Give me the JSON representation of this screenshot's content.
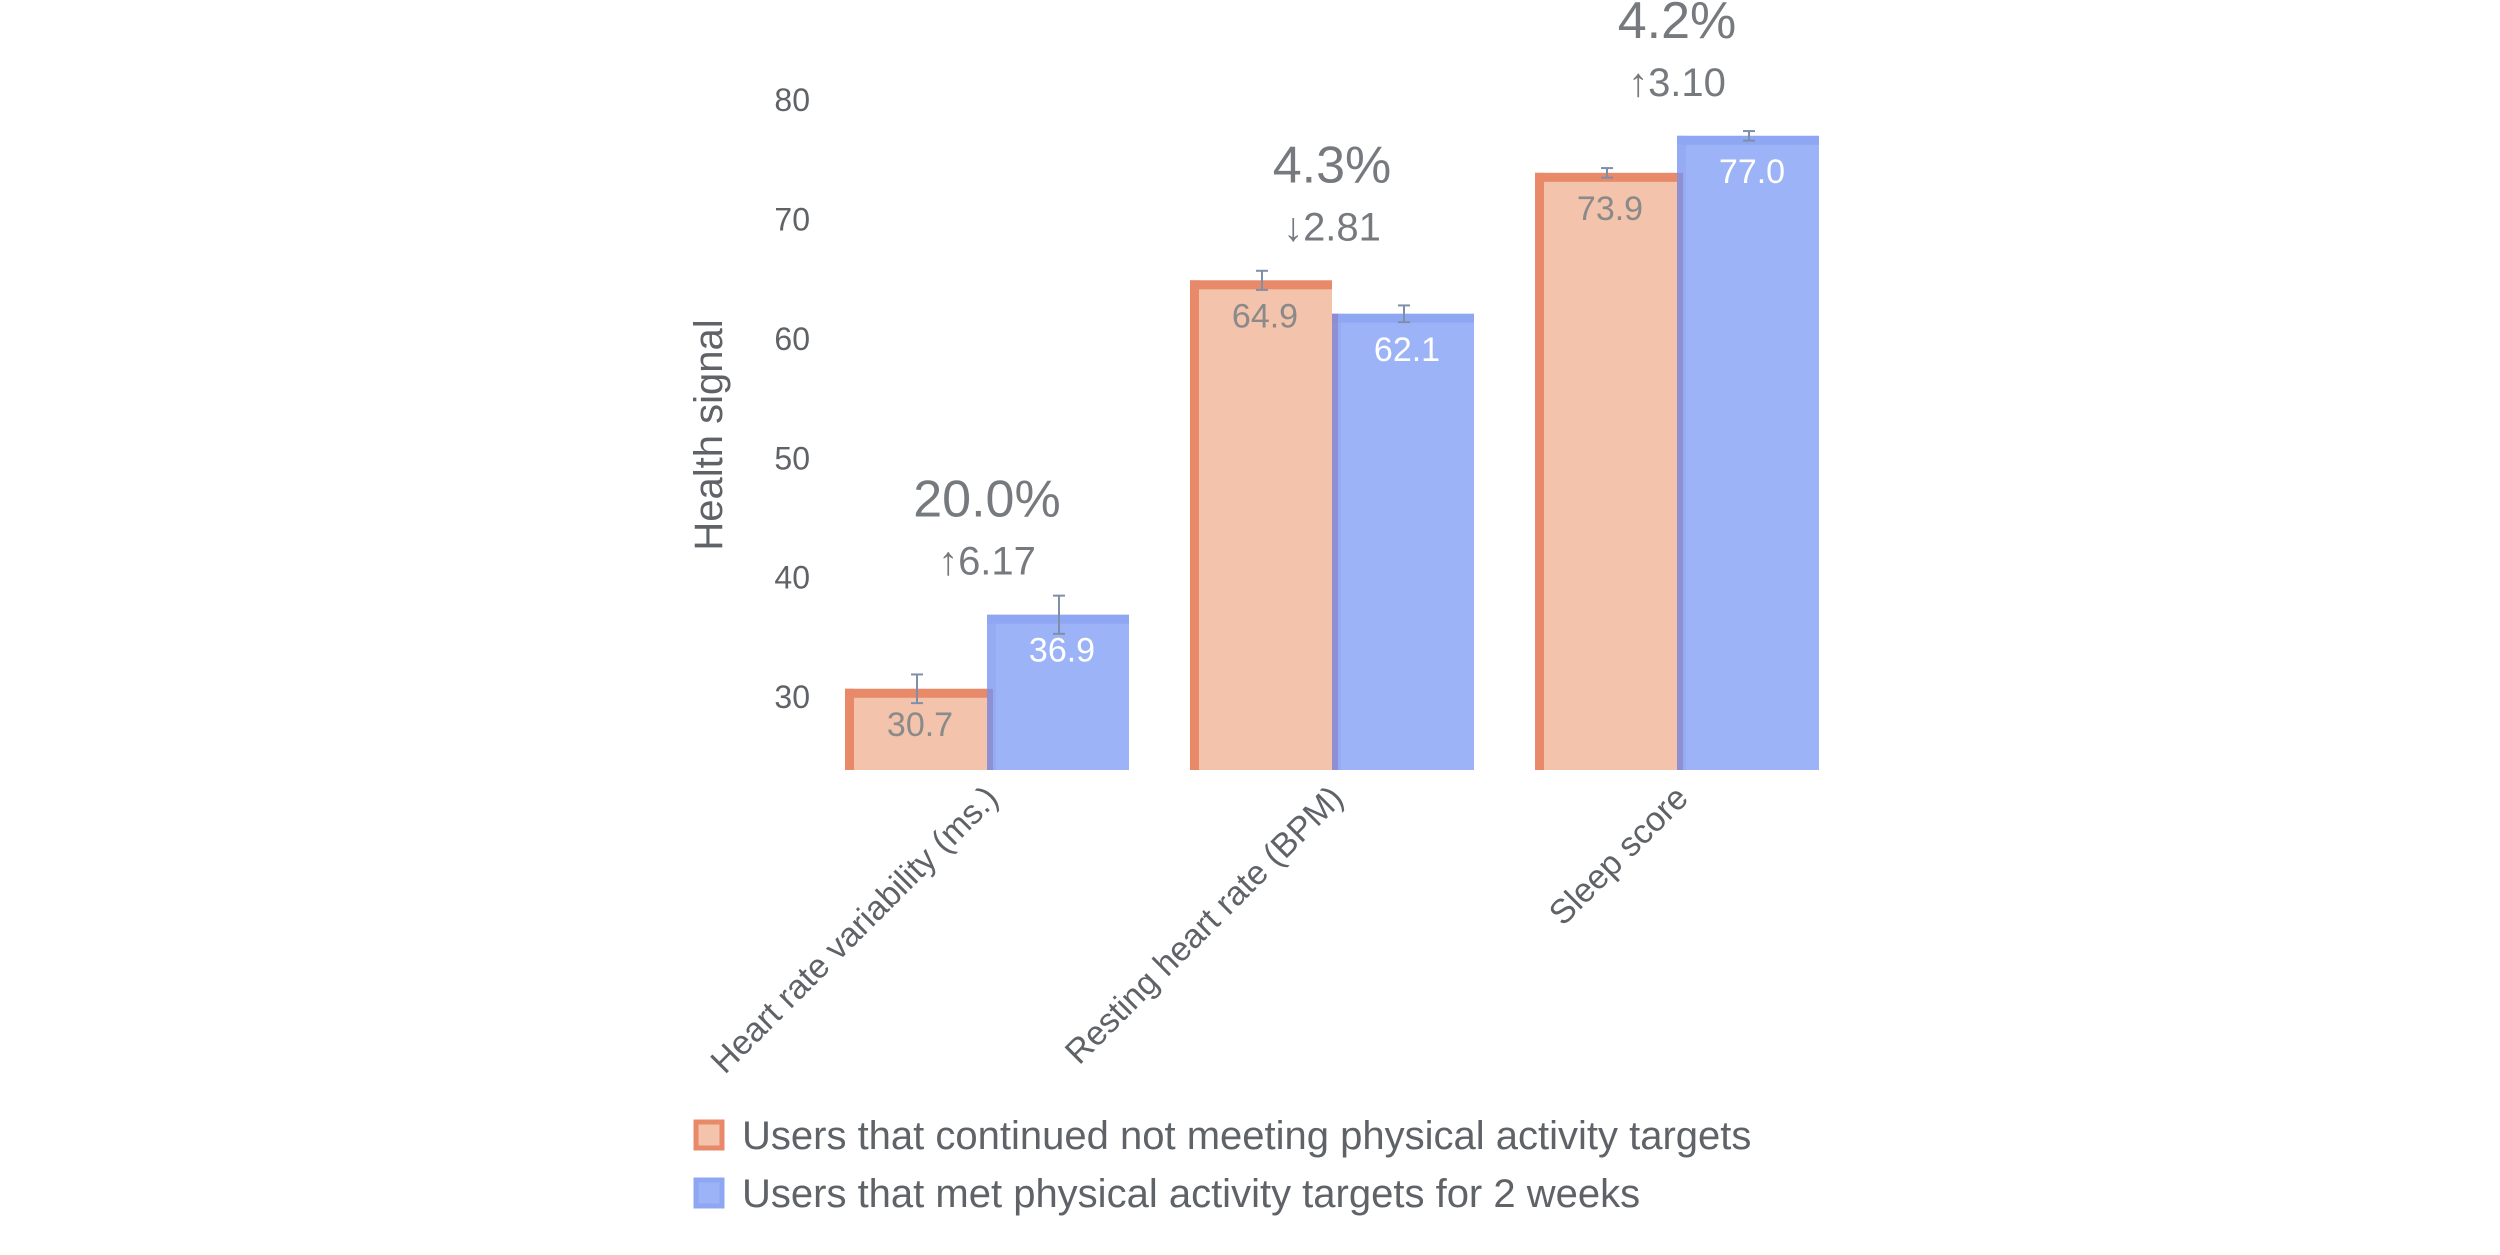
{
  "chart_data": {
    "type": "bar",
    "ylabel": "Health signal",
    "ylim": [
      23.9,
      80
    ],
    "yticks": [
      30,
      40,
      50,
      60,
      70,
      80
    ],
    "categories": [
      "Heart rate variability (ms.)",
      "Resting heart rate (BPM)",
      "Sleep score"
    ],
    "series": [
      {
        "name": "Users that continued not meeting physical activity targets",
        "values": [
          30.7,
          64.9,
          73.9
        ],
        "labels": [
          "30.7",
          "64.9",
          "73.9"
        ],
        "errors": [
          1.2,
          0.8,
          0.4
        ],
        "color": "#f4c3ac",
        "edge_color": "#e8896a",
        "label_color": "#8a8a8a"
      },
      {
        "name": "Users that met physical activity targets for 2 weeks",
        "values": [
          36.9,
          62.1,
          77.0
        ],
        "labels": [
          "36.9",
          "62.1",
          "77.0"
        ],
        "errors": [
          1.6,
          0.7,
          0.4
        ],
        "color": "#9db3f7",
        "edge_color": "#8fa7f2",
        "label_color": "#ffffff"
      }
    ],
    "annotations": [
      {
        "category": "Heart rate variability (ms.)",
        "percent": "20.0%",
        "delta": "6.17",
        "direction": "up"
      },
      {
        "category": "Resting heart rate (BPM)",
        "percent": "4.3%",
        "delta": "2.81",
        "direction": "down"
      },
      {
        "category": "Sleep score",
        "percent": "4.2%",
        "delta": "3.10",
        "direction": "up"
      }
    ],
    "legend_position": "bottom-left",
    "grid": false
  }
}
